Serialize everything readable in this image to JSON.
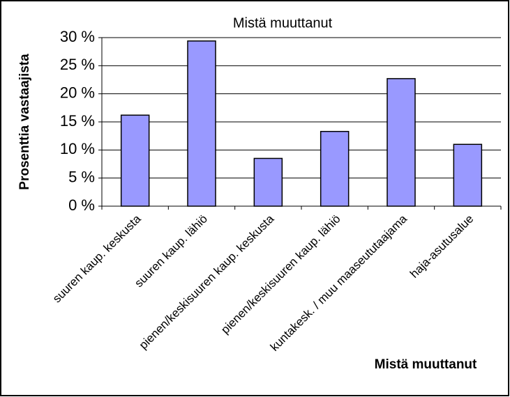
{
  "chart_data": {
    "type": "bar",
    "title": "Mistä muuttanut",
    "y_label": "Prosenttia vastaajista",
    "x_label": "Mistä muuttanut",
    "categories": [
      "suuren kaup. keskusta",
      "suuren kaup. lähiö",
      "pienen/keskisuuren kaup. keskusta",
      "pienen/keskisuuren kaup. lähiö",
      "kuntakesk. / muu maaseututaajama",
      "haja-asutusalue"
    ],
    "values": [
      16.2,
      29.4,
      8.5,
      13.3,
      22.7,
      11.0
    ],
    "color": "#9999ff",
    "ylim": [
      0,
      30
    ],
    "yticks": [
      {
        "value": 0,
        "label": "0 %"
      },
      {
        "value": 5,
        "label": "5 %"
      },
      {
        "value": 10,
        "label": "10 %"
      },
      {
        "value": 15,
        "label": "15 %"
      },
      {
        "value": 20,
        "label": "20 %"
      },
      {
        "value": 25,
        "label": "25 %"
      },
      {
        "value": 30,
        "label": "30 %"
      }
    ],
    "grid": true
  }
}
